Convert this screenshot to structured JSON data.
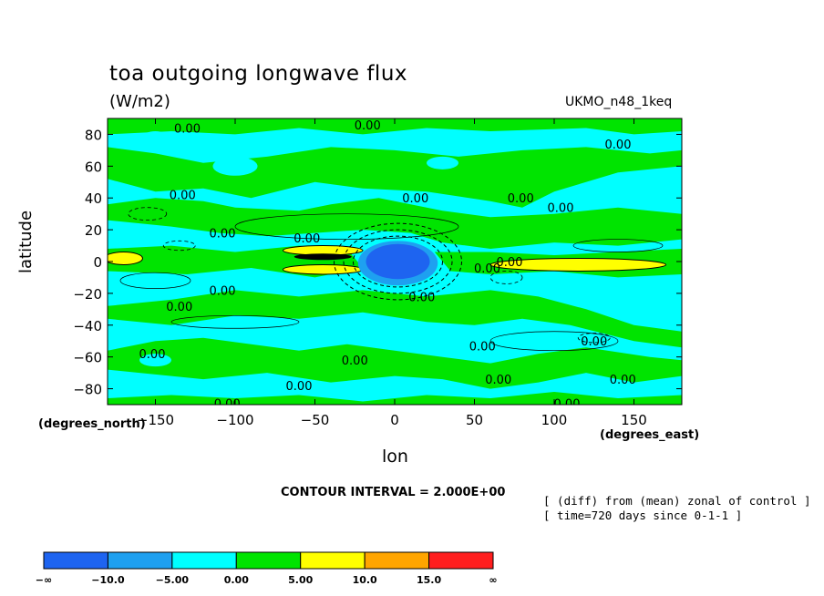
{
  "title": "toa outgoing longwave flux",
  "units": "(W/m2)",
  "model_label": "UKMO_n48_1keq",
  "chart_data": {
    "type": "heatmap",
    "title": "toa outgoing longwave flux",
    "subtitle": "(W/m2)",
    "xlabel": "lon",
    "ylabel": "latitude",
    "xunit": "(degrees_east)",
    "yunit": "(degrees_north)",
    "xlim": [
      -180,
      180
    ],
    "ylim": [
      -90,
      90
    ],
    "x_ticks": [
      -150,
      -100,
      -50,
      0,
      50,
      100,
      150
    ],
    "x_tick_labels": [
      "−150",
      "−100",
      "−50",
      "0",
      "50",
      "100",
      "150"
    ],
    "y_ticks": [
      80,
      60,
      40,
      20,
      0,
      -20,
      -40,
      -60,
      -80
    ],
    "y_tick_labels": [
      "80",
      "60",
      "40",
      "20",
      "0",
      "−20",
      "−40",
      "−60",
      "−80"
    ],
    "contour_interval": 2.0,
    "contour_interval_label": "CONTOUR INTERVAL = 2.000E+00",
    "contour_labels": [
      {
        "text": "0.00",
        "lon": -130,
        "lat": 84
      },
      {
        "text": "0.00",
        "lon": -17,
        "lat": 86
      },
      {
        "text": "0.00",
        "lon": 140,
        "lat": 74
      },
      {
        "text": "0.00",
        "lon": -133,
        "lat": 42
      },
      {
        "text": "0.00",
        "lon": 13,
        "lat": 40
      },
      {
        "text": "0.00",
        "lon": 79,
        "lat": 40
      },
      {
        "text": "0.00",
        "lon": 104,
        "lat": 34
      },
      {
        "text": "0.00",
        "lon": -108,
        "lat": 18
      },
      {
        "text": "0.00",
        "lon": -55,
        "lat": 15
      },
      {
        "text": "0.00",
        "lon": 58,
        "lat": -4
      },
      {
        "text": "0.00",
        "lon": 72,
        "lat": 0
      },
      {
        "text": "0.00",
        "lon": 17,
        "lat": -22
      },
      {
        "text": "0.00",
        "lon": -108,
        "lat": -18
      },
      {
        "text": "0.00",
        "lon": -135,
        "lat": -28
      },
      {
        "text": "0.00",
        "lon": 55,
        "lat": -53
      },
      {
        "text": "0.00",
        "lon": 125,
        "lat": -50
      },
      {
        "text": "0.00",
        "lon": -152,
        "lat": -58
      },
      {
        "text": "0.00",
        "lon": -25,
        "lat": -62
      },
      {
        "text": "0.00",
        "lon": -60,
        "lat": -78
      },
      {
        "text": "0.00",
        "lon": 65,
        "lat": -74
      },
      {
        "text": "0.00",
        "lon": 143,
        "lat": -74
      },
      {
        "text": "0.00",
        "lon": -105,
        "lat": -89
      },
      {
        "text": "0.00",
        "lon": 108,
        "lat": -89
      }
    ],
    "colorbar": {
      "levels": [
        "−∞",
        "−10.0",
        "−5.00",
        "0.00",
        "5.00",
        "10.0",
        "15.0",
        "∞"
      ],
      "colors": [
        "#1e64f0",
        "#1ea0f0",
        "#00ffff",
        "#00e400",
        "#ffff00",
        "#ffa500",
        "#ff1e1e"
      ]
    }
  },
  "notes": {
    "line1": "[ (diff) from (mean) zonal of control ]",
    "line2": "[ time=720 days since 0-1-1 ]"
  }
}
